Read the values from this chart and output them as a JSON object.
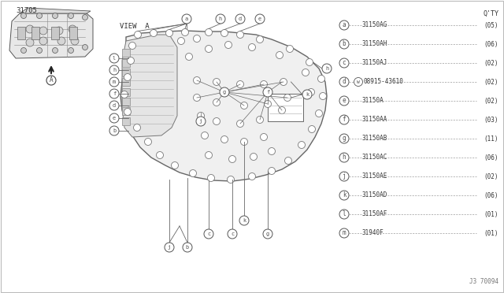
{
  "part_number_label": "31705",
  "view_label": "VIEW  A",
  "ref_code": "J3 70094",
  "background_color": "#ffffff",
  "qty_header": "Q'TY",
  "legend_entries": [
    {
      "letter": "a",
      "part": "31150AG",
      "qty": "(05)"
    },
    {
      "letter": "b",
      "part": "31150AH",
      "qty": "(06)"
    },
    {
      "letter": "c",
      "part": "31150AJ",
      "qty": "(02)"
    },
    {
      "letter": "d",
      "part": "08915-43610",
      "qty": "(02)",
      "prefix": "W"
    },
    {
      "letter": "e",
      "part": "31150A",
      "qty": "(02)"
    },
    {
      "letter": "f",
      "part": "31150AA",
      "qty": "(03)"
    },
    {
      "letter": "g",
      "part": "31150AB",
      "qty": "(11)"
    },
    {
      "letter": "h",
      "part": "31150AC",
      "qty": "(06)"
    },
    {
      "letter": "j",
      "part": "31150AE",
      "qty": "(02)"
    },
    {
      "letter": "k",
      "part": "31150AD",
      "qty": "(06)"
    },
    {
      "letter": "l",
      "part": "31150AF",
      "qty": "(01)"
    },
    {
      "letter": "m",
      "part": "31940F",
      "qty": "(01)"
    }
  ],
  "text_color": "#444444",
  "line_color": "#888888",
  "diagram_line_color": "#666666",
  "gasket_color": "#f0f0f0",
  "gasket_edge": "#666666"
}
